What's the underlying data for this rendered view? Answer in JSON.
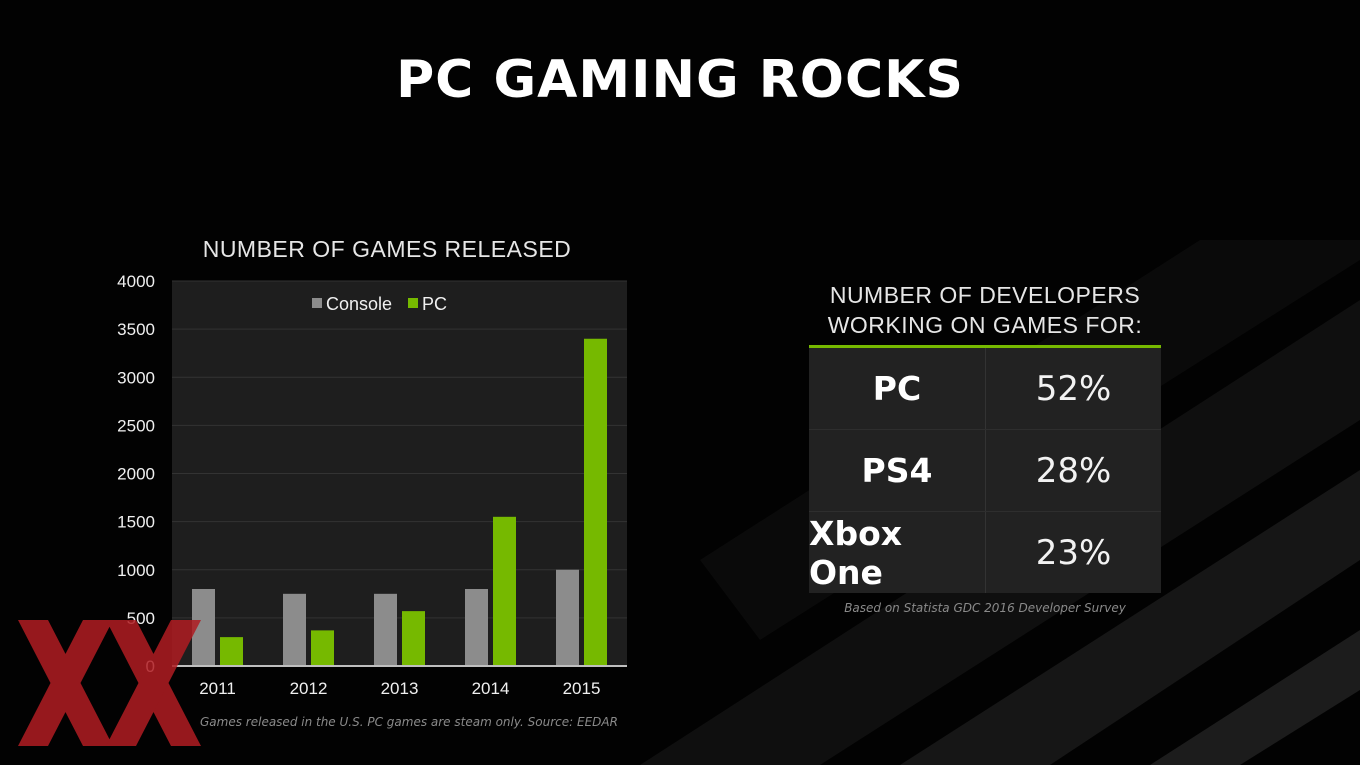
{
  "slide": {
    "title": "PC GAMING ROCKS"
  },
  "chart_data": {
    "type": "bar",
    "title": "NUMBER OF GAMES RELEASED",
    "categories": [
      "2011",
      "2012",
      "2013",
      "2014",
      "2015"
    ],
    "series": [
      {
        "name": "Console",
        "values": [
          800,
          750,
          750,
          800,
          1000
        ],
        "color": "#8c8c8c"
      },
      {
        "name": "PC",
        "values": [
          300,
          370,
          570,
          1550,
          3400
        ],
        "color": "#76b900"
      }
    ],
    "ylim": [
      0,
      4000
    ],
    "yticks": [
      0,
      500,
      1000,
      1500,
      2000,
      2500,
      3000,
      3500,
      4000
    ],
    "grid": true,
    "legend": "top-center",
    "note": "Games released in the U.S.  PC games are steam only.  Source: EEDAR"
  },
  "developers": {
    "heading_line1": "NUMBER OF DEVELOPERS",
    "heading_line2": "WORKING ON GAMES FOR:",
    "rows": [
      {
        "platform": "PC",
        "percent": "52%"
      },
      {
        "platform": "PS4",
        "percent": "28%"
      },
      {
        "platform": "Xbox One",
        "percent": "23%"
      }
    ],
    "note": "Based on Statista GDC 2016 Developer Survey",
    "accent_color": "#76b900"
  },
  "watermark": {
    "icon": "xx-logo-icon",
    "color": "#b01c22"
  }
}
